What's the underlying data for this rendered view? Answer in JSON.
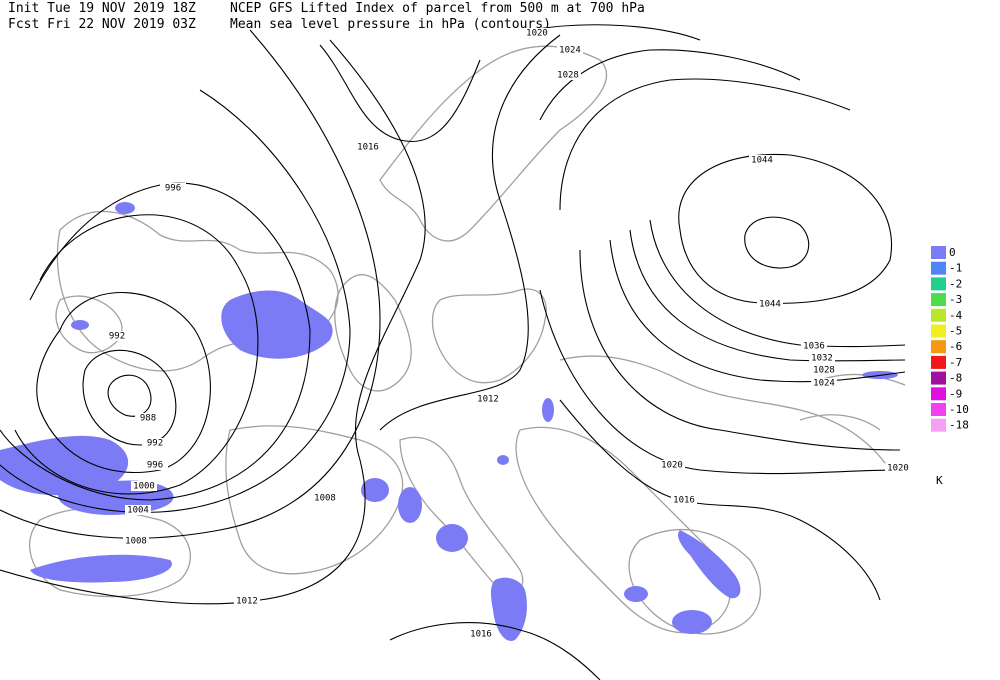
{
  "header": {
    "init": "Init  Tue 19 NOV 2019 18Z",
    "fcst": "Fcst Fri 22 NOV 2019 03Z",
    "title": "NCEP GFS Lifted Index of parcel from 500 m at 700 hPa",
    "subtitle": "Mean sea level pressure in hPa (contours)"
  },
  "contour_labels": [
    1020,
    1024,
    1028,
    1016,
    996,
    992,
    988,
    992,
    996,
    1000,
    1004,
    1008,
    1008,
    1012,
    1012,
    1016,
    1044,
    1044,
    1036,
    1032,
    1028,
    1024,
    1020,
    1020,
    1016
  ],
  "legend": {
    "levels": [
      {
        "value": 0,
        "color": "#7b7bf5"
      },
      {
        "value": -1,
        "color": "#4f86f7"
      },
      {
        "value": -2,
        "color": "#1fcf8a"
      },
      {
        "value": -3,
        "color": "#4cdc4c"
      },
      {
        "value": -4,
        "color": "#b8e82a"
      },
      {
        "value": -5,
        "color": "#f0f020"
      },
      {
        "value": -6,
        "color": "#f59a10"
      },
      {
        "value": -7,
        "color": "#f01818"
      },
      {
        "value": -8,
        "color": "#a010a0"
      },
      {
        "value": -9,
        "color": "#e010e0"
      },
      {
        "value": -10,
        "color": "#f040f0"
      },
      {
        "value": -18,
        "color": "#f5a0f5"
      }
    ],
    "unit": "K"
  }
}
